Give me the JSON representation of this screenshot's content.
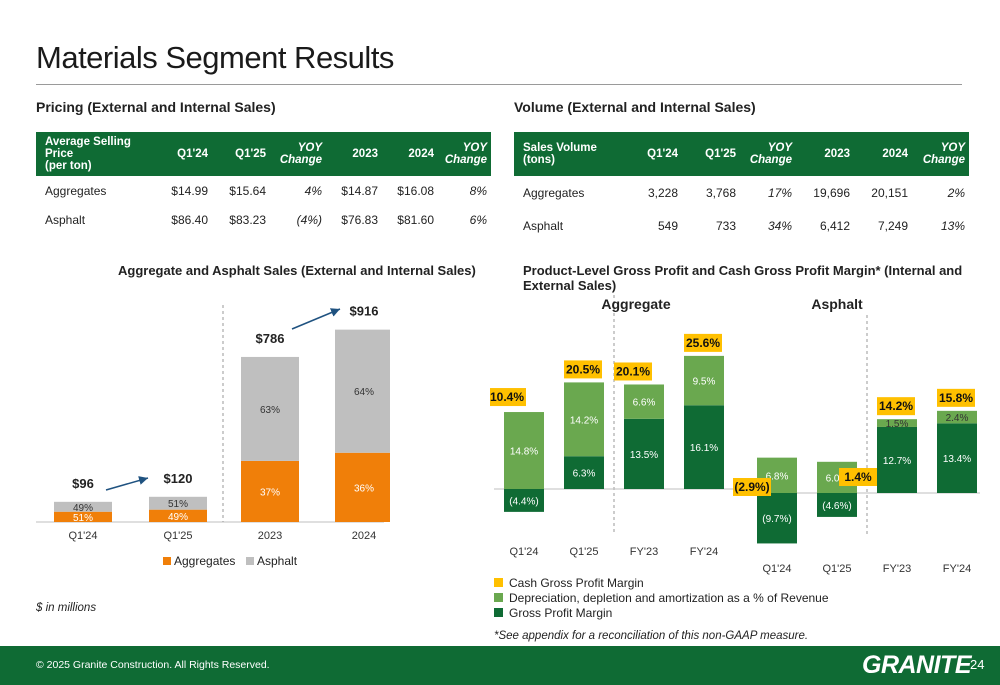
{
  "title": "Materials Segment Results",
  "pricing": {
    "heading": "Pricing (External and Internal Sales)",
    "headers": [
      "Average Selling Price (per ton)",
      "Q1'24",
      "Q1'25",
      "YOY Change",
      "2023",
      "2024",
      "YOY Change"
    ],
    "rows": [
      [
        "Aggregates",
        "$14.99",
        "$15.64",
        "4%",
        "$14.87",
        "$16.08",
        "8%"
      ],
      [
        "Asphalt",
        "$86.40",
        "$83.23",
        "(4%)",
        "$76.83",
        "$81.60",
        "6%"
      ]
    ]
  },
  "volume": {
    "heading": "Volume (External and Internal Sales)",
    "headers": [
      "Sales Volume (tons)",
      "Q1'24",
      "Q1'25",
      "YOY Change",
      "2023",
      "2024",
      "YOY Change"
    ],
    "rows": [
      [
        "Aggregates",
        "3,228",
        "3,768",
        "17%",
        "19,696",
        "20,151",
        "2%"
      ],
      [
        "Asphalt",
        "549",
        "733",
        "34%",
        "6,412",
        "7,249",
        "13%"
      ]
    ]
  },
  "units_note": "$ in millions",
  "appendix_note": "*See appendix for a reconciliation of this non-GAAP measure.",
  "copyright": "© 2025 Granite Construction. All Rights Reserved.",
  "logo_text": "GRANITE",
  "page_number": "24",
  "colors": {
    "green_dark": "#0f6b34",
    "green_light": "#6aa84f",
    "yellow": "#ffc000",
    "orange": "#f07f09",
    "gray": "#bfbfbf"
  },
  "chart_data": [
    {
      "type": "bar",
      "stacked": true,
      "title": "Aggregate and Asphalt Sales (External and Internal Sales)",
      "categories": [
        "Q1'24",
        "Q1'25",
        "2023",
        "2024"
      ],
      "totals": [
        "$96",
        "$120",
        "$786",
        "$916"
      ],
      "total_values": [
        96,
        120,
        786,
        916
      ],
      "series": [
        {
          "name": "Aggregates",
          "share": [
            51,
            49,
            37,
            36
          ],
          "labels": [
            "51%",
            "49%",
            "37%",
            "36%"
          ],
          "color": "#f07f09"
        },
        {
          "name": "Asphalt",
          "share": [
            49,
            51,
            63,
            64
          ],
          "labels": [
            "49%",
            "51%",
            "63%",
            "64%"
          ],
          "color": "#bfbfbf"
        }
      ],
      "legend": "bottom"
    },
    {
      "type": "bar",
      "stacked": true,
      "title": "Product-Level Gross Profit and Cash Gross Profit Margin* (Internal and External Sales)",
      "panels": [
        {
          "name": "Aggregate",
          "categories": [
            "Q1'24",
            "Q1'25",
            "FY'23",
            "FY'24"
          ],
          "gross_profit_margin": [
            -4.4,
            6.3,
            13.5,
            16.1
          ],
          "gross_profit_labels": [
            "(4.4%)",
            "6.3%",
            "13.5%",
            "16.1%"
          ],
          "dda": [
            14.8,
            14.2,
            6.6,
            9.5
          ],
          "dda_labels": [
            "14.8%",
            "14.2%",
            "6.6%",
            "9.5%"
          ],
          "cash_gross_profit_margin": [
            10.4,
            20.5,
            20.1,
            25.6
          ],
          "cash_labels": [
            "10.4%",
            "20.5%",
            "20.1%",
            "25.6%"
          ]
        },
        {
          "name": "Asphalt",
          "categories": [
            "Q1'24",
            "Q1'25",
            "FY'23",
            "FY'24"
          ],
          "gross_profit_margin": [
            -9.7,
            -4.6,
            12.7,
            13.4
          ],
          "gross_profit_labels": [
            "(9.7%)",
            "(4.6%)",
            "12.7%",
            "13.4%"
          ],
          "dda": [
            6.8,
            6.0,
            1.5,
            2.4
          ],
          "dda_labels": [
            "6.8%",
            "6.0%",
            "1.5%",
            "2.4%"
          ],
          "cash_gross_profit_margin": [
            -2.9,
            1.4,
            14.2,
            15.8
          ],
          "cash_labels": [
            "(2.9%)",
            "1.4%",
            "14.2%",
            "15.8%"
          ]
        }
      ],
      "legend": [
        "Cash Gross Profit Margin",
        "Depreciation, depletion and amortization as a % of Revenue",
        "Gross Profit Margin"
      ]
    }
  ]
}
